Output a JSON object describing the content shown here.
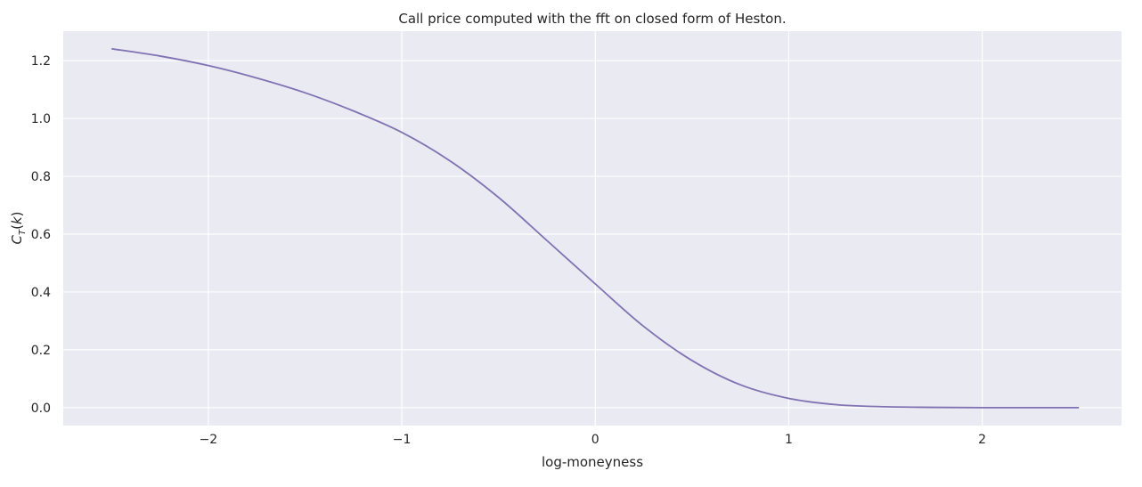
{
  "chart_data": {
    "type": "line",
    "title": "Call price computed with the fft on closed form of Heston.",
    "xlabel": "log-moneyness",
    "ylabel": "C_T(k)",
    "xlim": [
      -2.75,
      2.72
    ],
    "ylim": [
      -0.062,
      1.302
    ],
    "grid": true,
    "background_color": "#eaeaf2",
    "grid_color": "#ffffff",
    "xticks": [
      -2,
      -1,
      0,
      1,
      2
    ],
    "xtick_labels": [
      "−2",
      "−1",
      "0",
      "1",
      "2"
    ],
    "yticks": [
      0.0,
      0.2,
      0.4,
      0.6,
      0.8,
      1.0,
      1.2
    ],
    "ytick_labels": [
      "0.0",
      "0.2",
      "0.4",
      "0.6",
      "0.8",
      "1.0",
      "1.2"
    ],
    "series": [
      {
        "color": "#8172b3",
        "x": [
          -2.5,
          -2.25,
          -2.0,
          -1.75,
          -1.5,
          -1.25,
          -1.0,
          -0.75,
          -0.5,
          -0.25,
          0.0,
          0.25,
          0.5,
          0.75,
          1.0,
          1.25,
          1.5,
          1.75,
          2.0,
          2.25,
          2.5
        ],
        "y": [
          1.241,
          1.216,
          1.183,
          1.14,
          1.089,
          1.026,
          0.952,
          0.853,
          0.727,
          0.578,
          0.428,
          0.281,
          0.163,
          0.079,
          0.032,
          0.01,
          0.003,
          0.001,
          0.0,
          0.0,
          0.0
        ]
      }
    ]
  }
}
